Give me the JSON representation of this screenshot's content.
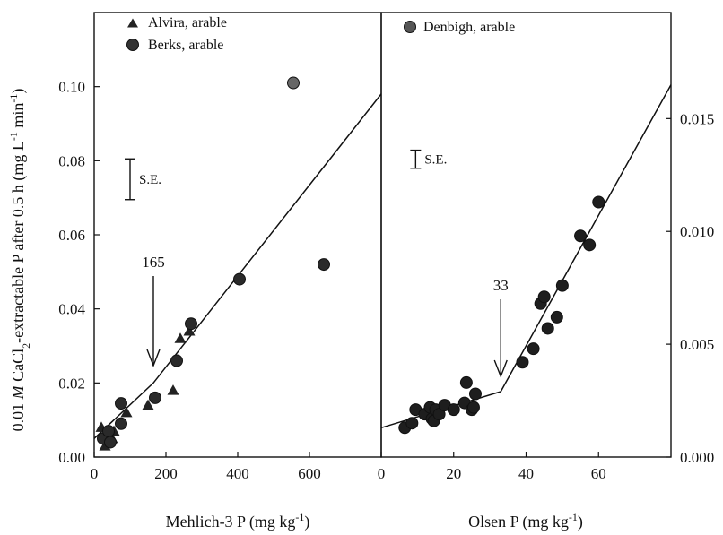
{
  "chart_data": [
    {
      "type": "scatter",
      "panel": "left",
      "xlabel": "Mehlich-3 P (mg kg-1)",
      "ylabel": "0.01 M CaCl2-extractable P after 0.5 h (mg L-1 min-1)",
      "xlim": [
        0,
        800
      ],
      "ylim": [
        0,
        0.12
      ],
      "xticks": [
        "0",
        "200",
        "400",
        "600"
      ],
      "xtick_values": [
        0,
        200,
        400,
        600
      ],
      "yticks": [
        "0.00",
        "0.02",
        "0.04",
        "0.06",
        "0.08",
        "0.10"
      ],
      "ytick_values": [
        0,
        0.02,
        0.04,
        0.06,
        0.08,
        0.1
      ],
      "series": [
        {
          "name": "Alvira, arable",
          "marker": "triangle",
          "points": [
            [
              20,
              0.008
            ],
            [
              30,
              0.003
            ],
            [
              35,
              0.006
            ],
            [
              50,
              0.005
            ],
            [
              55,
              0.007
            ],
            [
              90,
              0.012
            ],
            [
              150,
              0.014
            ],
            [
              220,
              0.018
            ],
            [
              240,
              0.032
            ],
            [
              265,
              0.034
            ]
          ]
        },
        {
          "name": "Berks, arable",
          "marker": "circle",
          "points": [
            [
              25,
              0.005
            ],
            [
              40,
              0.007
            ],
            [
              45,
              0.004
            ],
            [
              75,
              0.009
            ],
            [
              75,
              0.0145
            ],
            [
              170,
              0.016
            ],
            [
              230,
              0.026
            ],
            [
              270,
              0.036
            ],
            [
              405,
              0.048
            ],
            [
              555,
              0.101
            ],
            [
              640,
              0.052
            ]
          ]
        }
      ],
      "fit_line": [
        [
          0,
          0.005
        ],
        [
          165,
          0.02
        ],
        [
          800,
          0.098
        ]
      ],
      "changepoint": {
        "x": 165,
        "label": "165"
      },
      "se_bar": {
        "label": "S.E.",
        "x": 100,
        "low": 0.0695,
        "high": 0.0805
      }
    },
    {
      "type": "scatter",
      "panel": "right",
      "xlabel": "Olsen P (mg kg-1)",
      "xlim": [
        0,
        80
      ],
      "ylim": [
        0,
        0.0197
      ],
      "xticks": [
        "0",
        "20",
        "40",
        "60"
      ],
      "xtick_values": [
        0,
        20,
        40,
        60
      ],
      "yticks": [
        "0.000",
        "0.005",
        "0.010",
        "0.015"
      ],
      "ytick_values": [
        0,
        0.005,
        0.01,
        0.015
      ],
      "series": [
        {
          "name": "Denbigh, arable",
          "marker": "circle",
          "points": [
            [
              6.5,
              0.0013
            ],
            [
              8.5,
              0.0015
            ],
            [
              9.5,
              0.0021
            ],
            [
              12,
              0.0019
            ],
            [
              13.5,
              0.0022
            ],
            [
              14,
              0.0017
            ],
            [
              14.5,
              0.0016
            ],
            [
              15,
              0.0021
            ],
            [
              16,
              0.0019
            ],
            [
              17.5,
              0.0023
            ],
            [
              20,
              0.0021
            ],
            [
              23,
              0.0024
            ],
            [
              23.5,
              0.0033
            ],
            [
              25,
              0.0021
            ],
            [
              25.5,
              0.0022
            ],
            [
              26,
              0.0028
            ],
            [
              39,
              0.0042
            ],
            [
              42,
              0.0048
            ],
            [
              44,
              0.0068
            ],
            [
              45,
              0.0071
            ],
            [
              46,
              0.0057
            ],
            [
              48.5,
              0.0062
            ],
            [
              50,
              0.0076
            ],
            [
              55,
              0.0098
            ],
            [
              57.5,
              0.0094
            ],
            [
              60,
              0.0113
            ]
          ]
        }
      ],
      "fit_line": [
        [
          0,
          0.0013
        ],
        [
          33,
          0.0029
        ],
        [
          80,
          0.0165
        ]
      ],
      "changepoint": {
        "x": 33,
        "label": "33"
      },
      "se_bar": {
        "label": "S.E.",
        "x": 9.5,
        "low": 0.0128,
        "high": 0.0136
      }
    }
  ]
}
